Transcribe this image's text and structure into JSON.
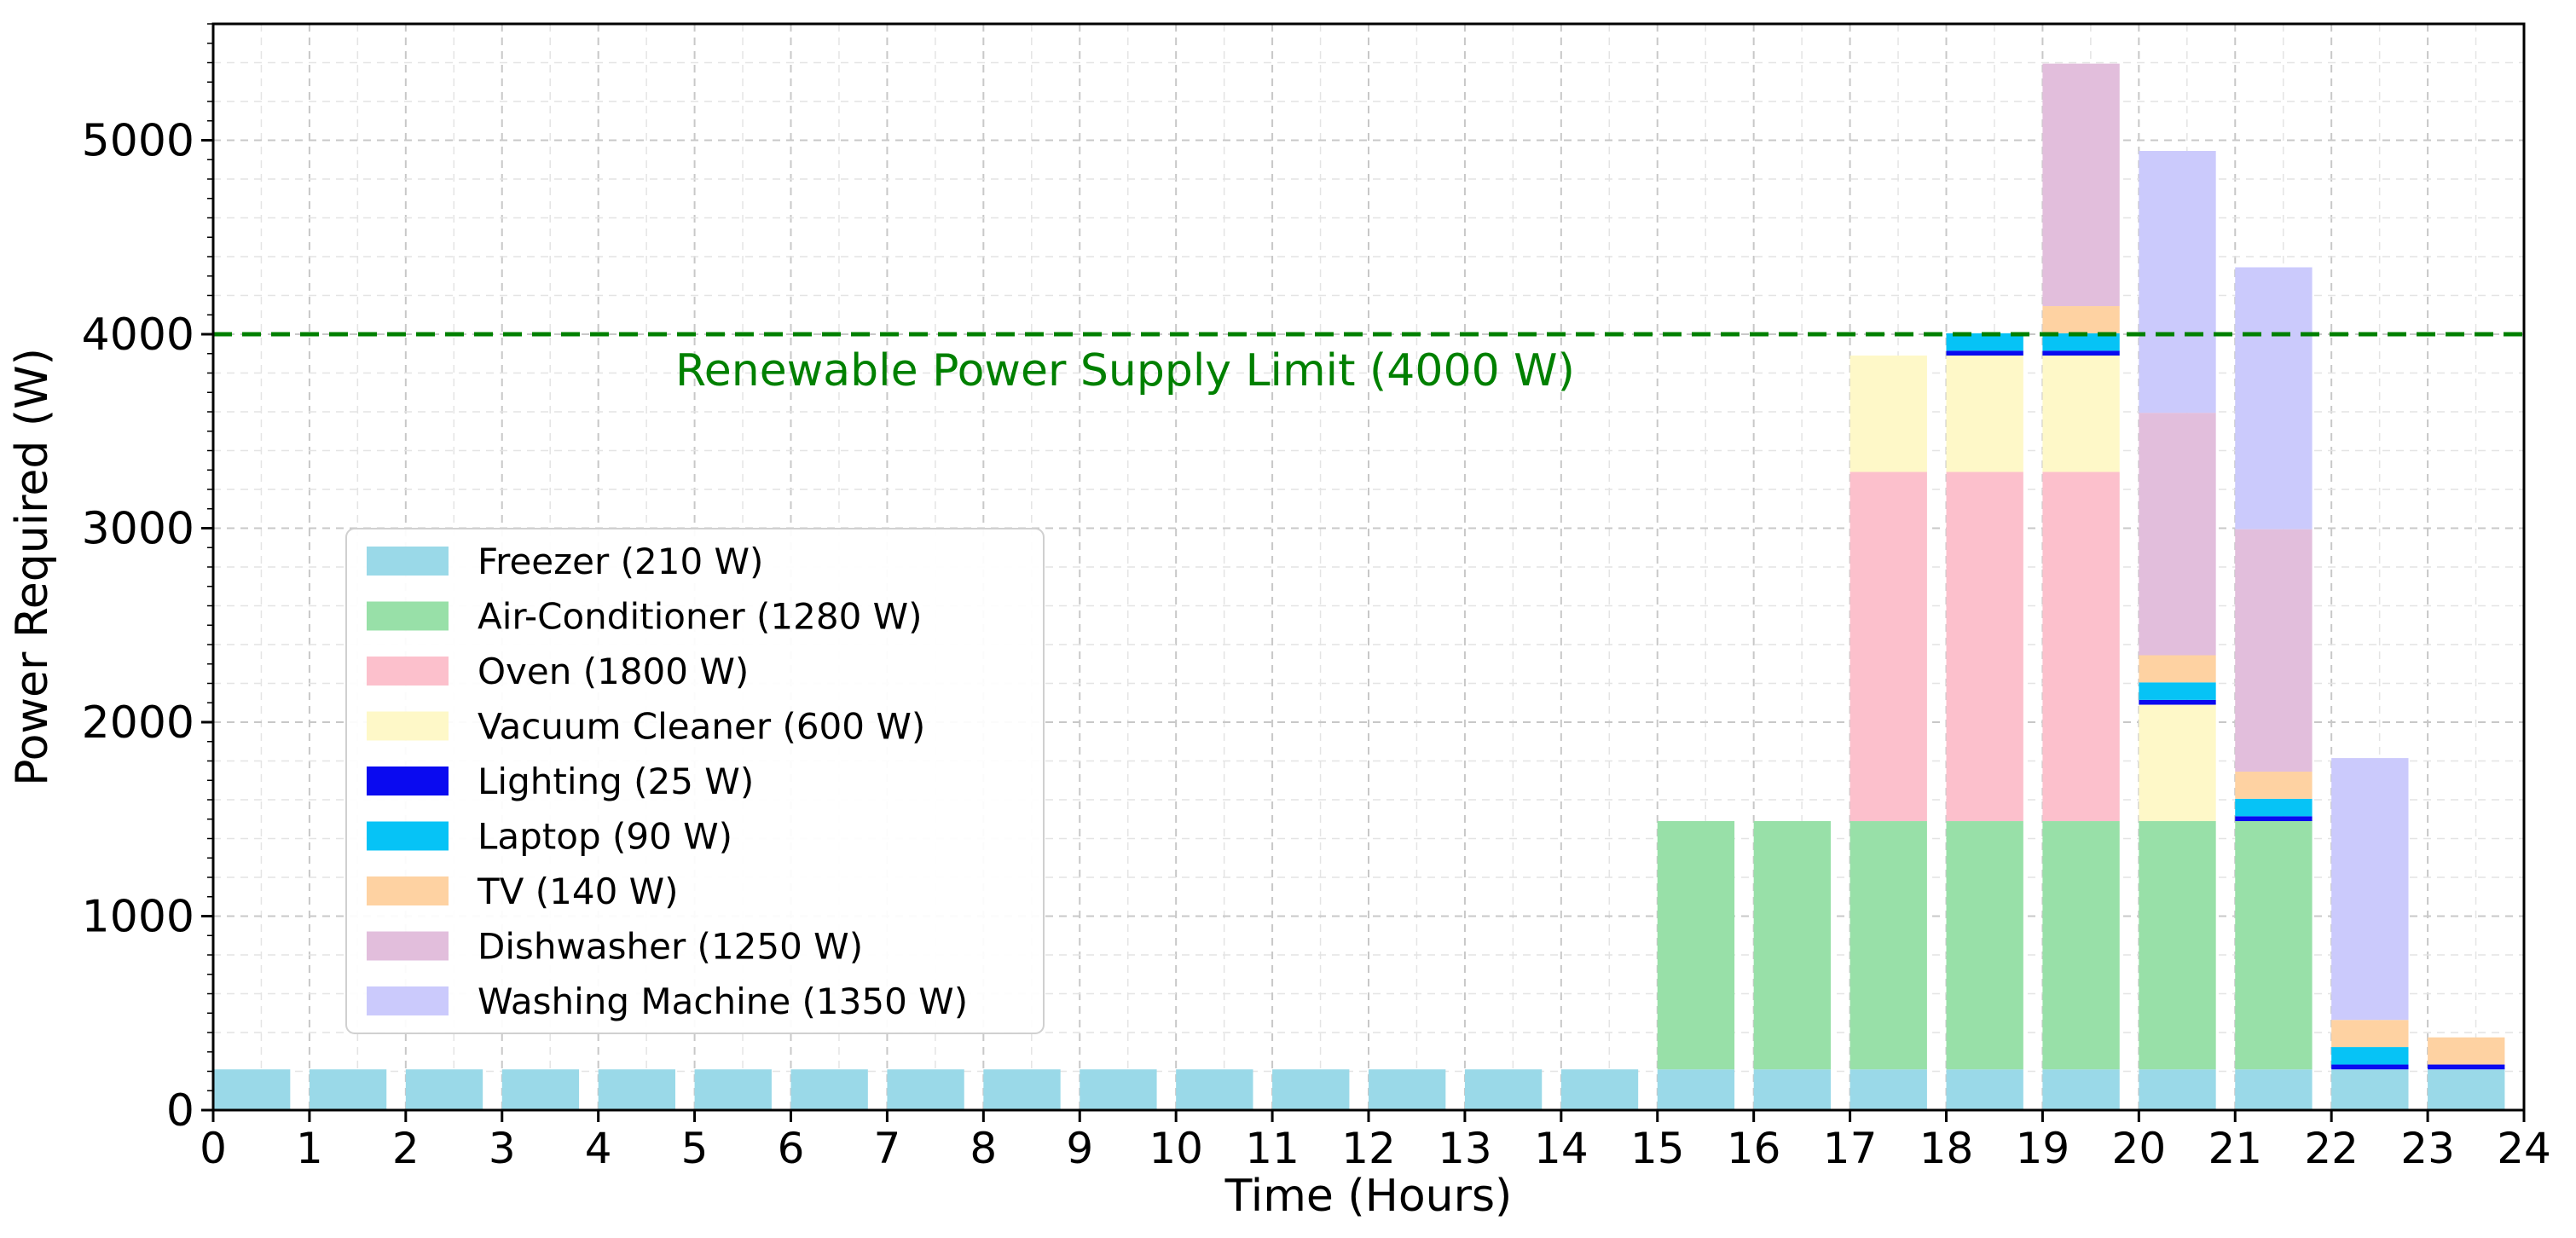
{
  "chart_data": {
    "type": "bar",
    "stacked": true,
    "xlabel": "Time (Hours)",
    "ylabel": "Power Required (W)",
    "xlim": [
      0,
      24
    ],
    "ylim": [
      0,
      5600
    ],
    "x_ticks": [
      "0",
      "1",
      "2",
      "3",
      "4",
      "5",
      "6",
      "7",
      "8",
      "9",
      "10",
      "11",
      "12",
      "13",
      "14",
      "15",
      "16",
      "17",
      "18",
      "19",
      "20",
      "21",
      "22",
      "23",
      "24"
    ],
    "y_ticks": [
      "0",
      "1000",
      "2000",
      "3000",
      "4000",
      "5000"
    ],
    "grid": true,
    "legend_position": "center-left",
    "reference_line": {
      "value": 4000,
      "label": "Renewable Power Supply Limit (4000 W)",
      "color": "#008000",
      "style": "dashed"
    },
    "hours": [
      0,
      1,
      2,
      3,
      4,
      5,
      6,
      7,
      8,
      9,
      10,
      11,
      12,
      13,
      14,
      15,
      16,
      17,
      18,
      19,
      20,
      21,
      22,
      23
    ],
    "series": [
      {
        "name": "Freezer (210 W)",
        "color": "#9ad9e8",
        "values": [
          210,
          210,
          210,
          210,
          210,
          210,
          210,
          210,
          210,
          210,
          210,
          210,
          210,
          210,
          210,
          210,
          210,
          210,
          210,
          210,
          210,
          210,
          210,
          210
        ]
      },
      {
        "name": "Air-Conditioner (1280 W)",
        "color": "#98e0a8",
        "values": [
          0,
          0,
          0,
          0,
          0,
          0,
          0,
          0,
          0,
          0,
          0,
          0,
          0,
          0,
          0,
          1280,
          1280,
          1280,
          1280,
          1280,
          1280,
          1280,
          0,
          0
        ]
      },
      {
        "name": "Oven (1800 W)",
        "color": "#fcc0cc",
        "values": [
          0,
          0,
          0,
          0,
          0,
          0,
          0,
          0,
          0,
          0,
          0,
          0,
          0,
          0,
          0,
          0,
          0,
          1800,
          1800,
          1800,
          0,
          0,
          0,
          0
        ]
      },
      {
        "name": "Vacuum Cleaner (600 W)",
        "color": "#fef8c8",
        "values": [
          0,
          0,
          0,
          0,
          0,
          0,
          0,
          0,
          0,
          0,
          0,
          0,
          0,
          0,
          0,
          0,
          0,
          600,
          600,
          600,
          600,
          0,
          0,
          0
        ]
      },
      {
        "name": "Lighting (25 W)",
        "color": "#0a0af0",
        "values": [
          0,
          0,
          0,
          0,
          0,
          0,
          0,
          0,
          0,
          0,
          0,
          0,
          0,
          0,
          0,
          0,
          0,
          0,
          25,
          25,
          25,
          25,
          25,
          25
        ]
      },
      {
        "name": "Laptop (90 W)",
        "color": "#06c3f6",
        "values": [
          0,
          0,
          0,
          0,
          0,
          0,
          0,
          0,
          0,
          0,
          0,
          0,
          0,
          0,
          0,
          0,
          0,
          0,
          90,
          90,
          90,
          90,
          90,
          0
        ]
      },
      {
        "name": "TV (140 W)",
        "color": "#fed2a2",
        "values": [
          0,
          0,
          0,
          0,
          0,
          0,
          0,
          0,
          0,
          0,
          0,
          0,
          0,
          0,
          0,
          0,
          0,
          0,
          0,
          140,
          140,
          140,
          140,
          140
        ]
      },
      {
        "name": "Dishwasher (1250 W)",
        "color": "#e2bedc",
        "values": [
          0,
          0,
          0,
          0,
          0,
          0,
          0,
          0,
          0,
          0,
          0,
          0,
          0,
          0,
          0,
          0,
          0,
          0,
          0,
          1250,
          1250,
          1250,
          0,
          0
        ]
      },
      {
        "name": "Washing Machine (1350 W)",
        "color": "#cbcafc",
        "values": [
          0,
          0,
          0,
          0,
          0,
          0,
          0,
          0,
          0,
          0,
          0,
          0,
          0,
          0,
          0,
          0,
          0,
          0,
          0,
          0,
          1350,
          1350,
          1350,
          0
        ]
      }
    ]
  }
}
